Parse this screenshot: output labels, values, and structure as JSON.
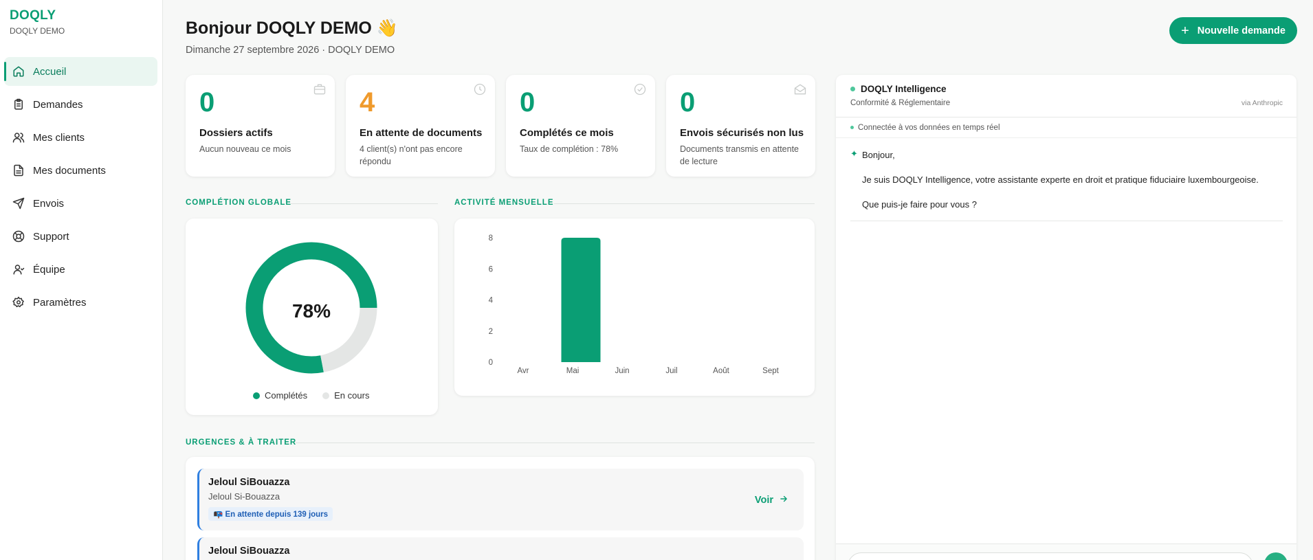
{
  "brand": {
    "name": "DOQLY",
    "sub": "DOQLY DEMO"
  },
  "sidebar": {
    "items": [
      {
        "label": "Accueil",
        "icon": "home-icon",
        "active": true
      },
      {
        "label": "Demandes",
        "icon": "clipboard-icon"
      },
      {
        "label": "Mes clients",
        "icon": "users-icon"
      },
      {
        "label": "Mes documents",
        "icon": "document-icon"
      },
      {
        "label": "Envois",
        "icon": "send-icon"
      },
      {
        "label": "Support",
        "icon": "lifebuoy-icon"
      },
      {
        "label": "Équipe",
        "icon": "user-icon"
      },
      {
        "label": "Paramètres",
        "icon": "gear-icon"
      }
    ]
  },
  "header": {
    "greeting": "Bonjour DOQLY DEMO 👋",
    "date": "Dimanche 27 septembre 2026 · DOQLY DEMO",
    "new_button": "Nouvelle demande",
    "new_button_icon": "plus-icon"
  },
  "stats": [
    {
      "value": "0",
      "title": "Dossiers actifs",
      "sub": "Aucun nouveau ce mois",
      "icon": "briefcase-icon",
      "color": "#0a9e74"
    },
    {
      "value": "4",
      "title": "En attente de documents",
      "sub": "4 client(s) n'ont pas encore répondu",
      "icon": "clock-icon",
      "color": "#ef9a2c"
    },
    {
      "value": "0",
      "title": "Complétés ce mois",
      "sub": "Taux de complétion : 78%",
      "icon": "check-circle-icon",
      "color": "#0a9e74"
    },
    {
      "value": "0",
      "title": "Envois sécurisés non lus",
      "sub": "Documents transmis en attente de lecture",
      "icon": "mail-open-icon",
      "color": "#0a9e74"
    }
  ],
  "sections": {
    "completion": "COMPLÉTION GLOBALE",
    "activity": "ACTIVITÉ MENSUELLE",
    "urgent": "URGENCES & À TRAITER"
  },
  "donut": {
    "center_label": "78%",
    "legend_done": "Complétés",
    "legend_pending": "En cours"
  },
  "chart_data": [
    {
      "type": "pie",
      "title": "COMPLÉTION GLOBALE",
      "categories": [
        "Complétés",
        "En cours"
      ],
      "values": [
        78,
        22
      ],
      "colors": [
        "#0a9e74",
        "#e4e6e5"
      ],
      "legend": "bottom"
    },
    {
      "type": "bar",
      "title": "ACTIVITÉ MENSUELLE",
      "categories": [
        "Avr",
        "Mai",
        "Juin",
        "Juil",
        "Août",
        "Sept"
      ],
      "values": [
        0,
        8,
        0,
        0,
        0,
        0
      ],
      "yticks": [
        "0",
        "2",
        "4",
        "6",
        "8"
      ],
      "ylim": [
        0,
        8
      ],
      "grid": false,
      "color": "#0a9e74"
    }
  ],
  "urgent": [
    {
      "name": "Jeloul SiBouazza",
      "sub": "Jeloul Si-Bouazza",
      "badge": "📭 En attente depuis 139 jours",
      "action": "Voir"
    },
    {
      "name": "Jeloul SiBouazza",
      "sub": "",
      "badge": "",
      "action": ""
    }
  ],
  "ai": {
    "title": "DOQLY Intelligence",
    "subtitle": "Conformité & Réglementaire",
    "via": "via Anthropic",
    "connection": "Connectée à vos données en temps réel",
    "messages": [
      "Bonjour,",
      "Je suis DOQLY Intelligence, votre assistante experte en droit et pratique fiduciaire luxembourgeoise.",
      "Que puis-je faire pour vous ?"
    ]
  }
}
